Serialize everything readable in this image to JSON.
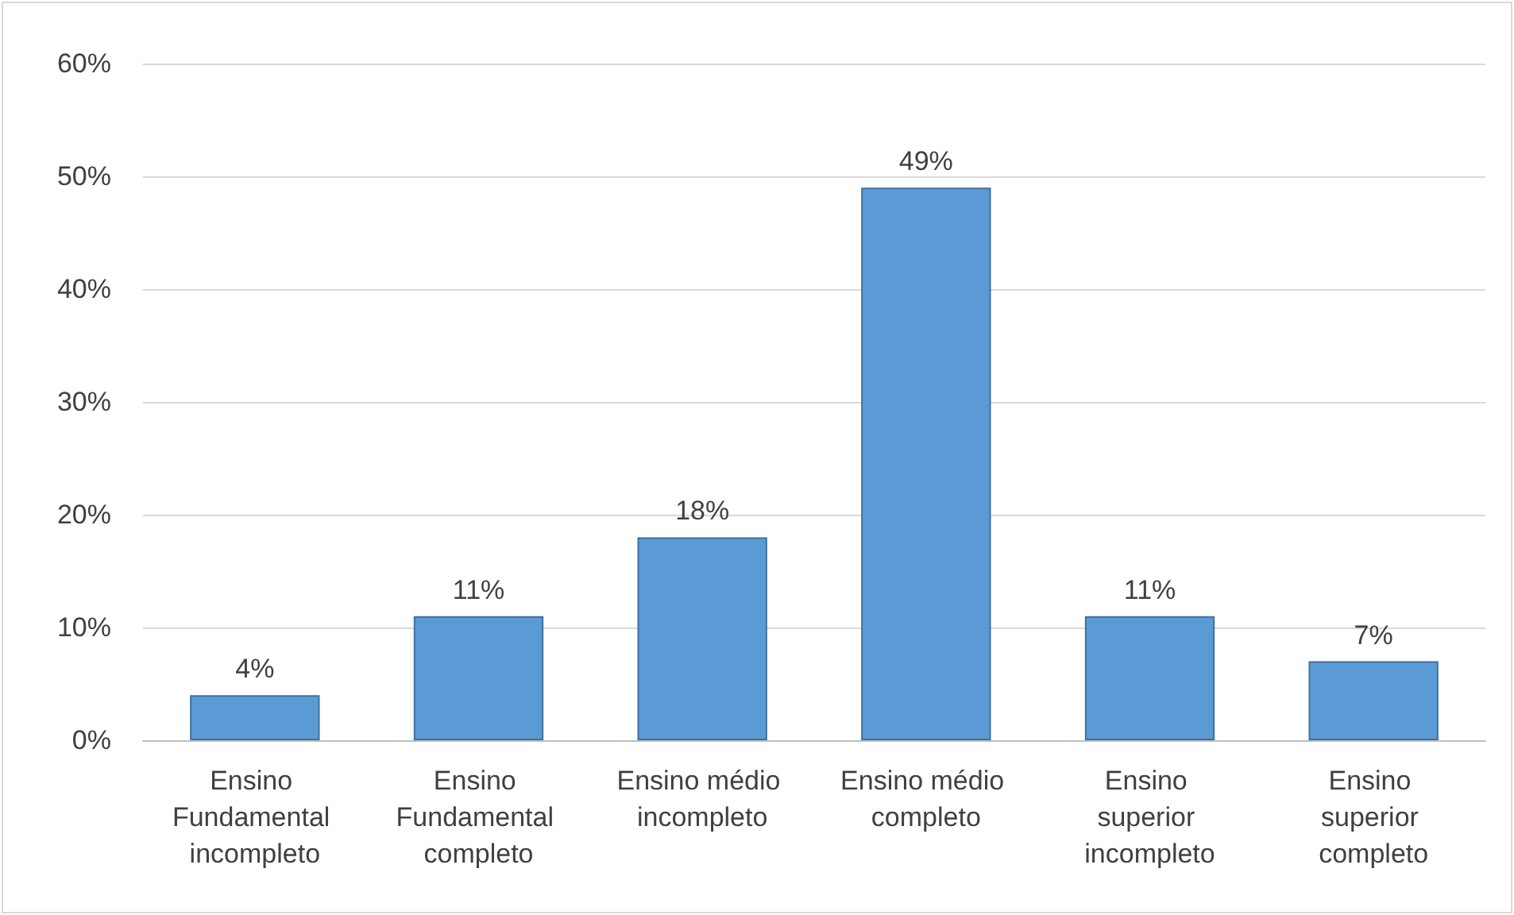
{
  "chart_data": {
    "type": "bar",
    "categories": [
      "Ensino Fundamental incompleto",
      "Ensino Fundamental completo",
      "Ensino médio incompleto",
      "Ensino médio completo",
      "Ensino superior incompleto",
      "Ensino superior completo"
    ],
    "values": [
      4,
      11,
      18,
      49,
      11,
      7
    ],
    "value_labels": [
      "4%",
      "11%",
      "18%",
      "49%",
      "11%",
      "7%"
    ],
    "color": "#5b9bd5",
    "ylim": [
      0,
      60
    ],
    "yticks": [
      {
        "value": 0,
        "label": "0%"
      },
      {
        "value": 10,
        "label": "10%"
      },
      {
        "value": 20,
        "label": "20%"
      },
      {
        "value": 30,
        "label": "30%"
      },
      {
        "value": 40,
        "label": "40%"
      },
      {
        "value": 50,
        "label": "50%"
      },
      {
        "value": 60,
        "label": "60%"
      }
    ],
    "grid": "y"
  }
}
